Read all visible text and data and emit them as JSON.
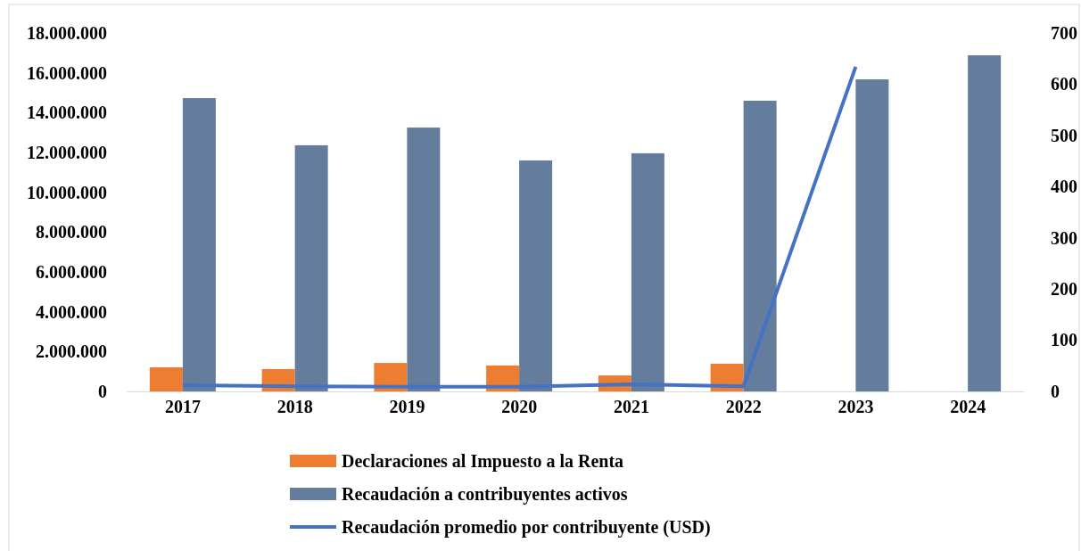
{
  "chart_data": {
    "type": "bar",
    "categories": [
      "2017",
      "2018",
      "2019",
      "2020",
      "2021",
      "2022",
      "2023",
      "2024"
    ],
    "series": [
      {
        "name": "Declaraciones al Impuesto a la Renta",
        "color": "#ed7d31",
        "values": [
          1210000,
          1120000,
          1430000,
          1300000,
          800000,
          1390000,
          null,
          null
        ]
      },
      {
        "name": "Recaudación a contribuyentes activos",
        "color": "#647d9c",
        "values": [
          14730000,
          12360000,
          13250000,
          11600000,
          11960000,
          14600000,
          15670000,
          16880000
        ]
      },
      {
        "name": "Recaudación promedio por contribuyente (USD)",
        "type": "line",
        "axis": "y2",
        "color": "#4472c4",
        "values": [
          12,
          10,
          9,
          9,
          14,
          10,
          634,
          null
        ]
      }
    ],
    "ylim": [
      0,
      18000000
    ],
    "yticks": [
      {
        "value": 0,
        "label": "0"
      },
      {
        "value": 2000000,
        "label": "2.000.000"
      },
      {
        "value": 4000000,
        "label": "4.000.000"
      },
      {
        "value": 6000000,
        "label": "6.000.000"
      },
      {
        "value": 8000000,
        "label": "8.000.000"
      },
      {
        "value": 10000000,
        "label": "10.000.000"
      },
      {
        "value": 12000000,
        "label": "12.000.000"
      },
      {
        "value": 14000000,
        "label": "14.000.000"
      },
      {
        "value": 16000000,
        "label": "16.000.000"
      },
      {
        "value": 18000000,
        "label": "18.000.000"
      }
    ],
    "y2lim": [
      0,
      700
    ],
    "y2ticks": [
      0,
      100,
      200,
      300,
      400,
      500,
      600,
      700
    ],
    "legend": "bottom",
    "marker": "none",
    "grid": false
  }
}
